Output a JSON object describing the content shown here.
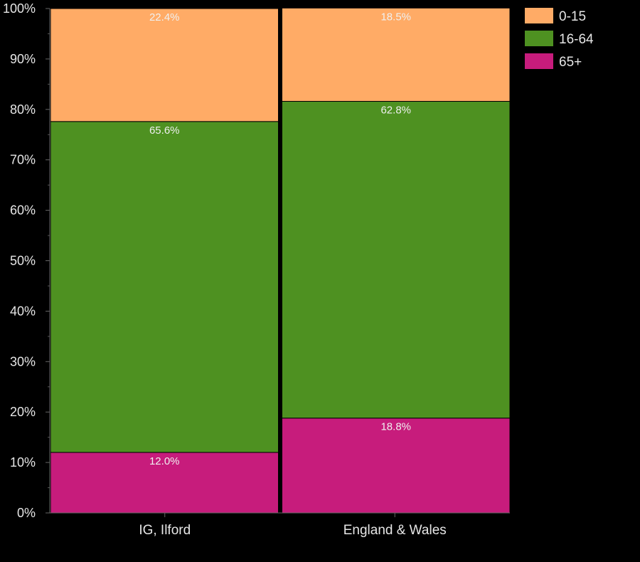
{
  "chart_data": {
    "type": "bar",
    "stacked": true,
    "categories": [
      "IG, Ilford",
      "England & Wales"
    ],
    "series": [
      {
        "name": "0-15",
        "color": "#ffab66",
        "values": [
          22.4,
          18.5
        ]
      },
      {
        "name": "16-64",
        "color": "#4e9121",
        "values": [
          65.6,
          62.8
        ]
      },
      {
        "name": "65+",
        "color": "#c71c7c",
        "values": [
          12.0,
          18.8
        ]
      }
    ],
    "data_labels": [
      [
        "22.4%",
        "18.5%"
      ],
      [
        "65.6%",
        "62.8%"
      ],
      [
        "12.0%",
        "18.8%"
      ]
    ],
    "y_ticks": [
      "0%",
      "10%",
      "20%",
      "30%",
      "40%",
      "50%",
      "60%",
      "70%",
      "80%",
      "90%",
      "100%"
    ],
    "ylim": [
      0,
      100
    ],
    "legend_position": "top-right",
    "grid": false
  }
}
